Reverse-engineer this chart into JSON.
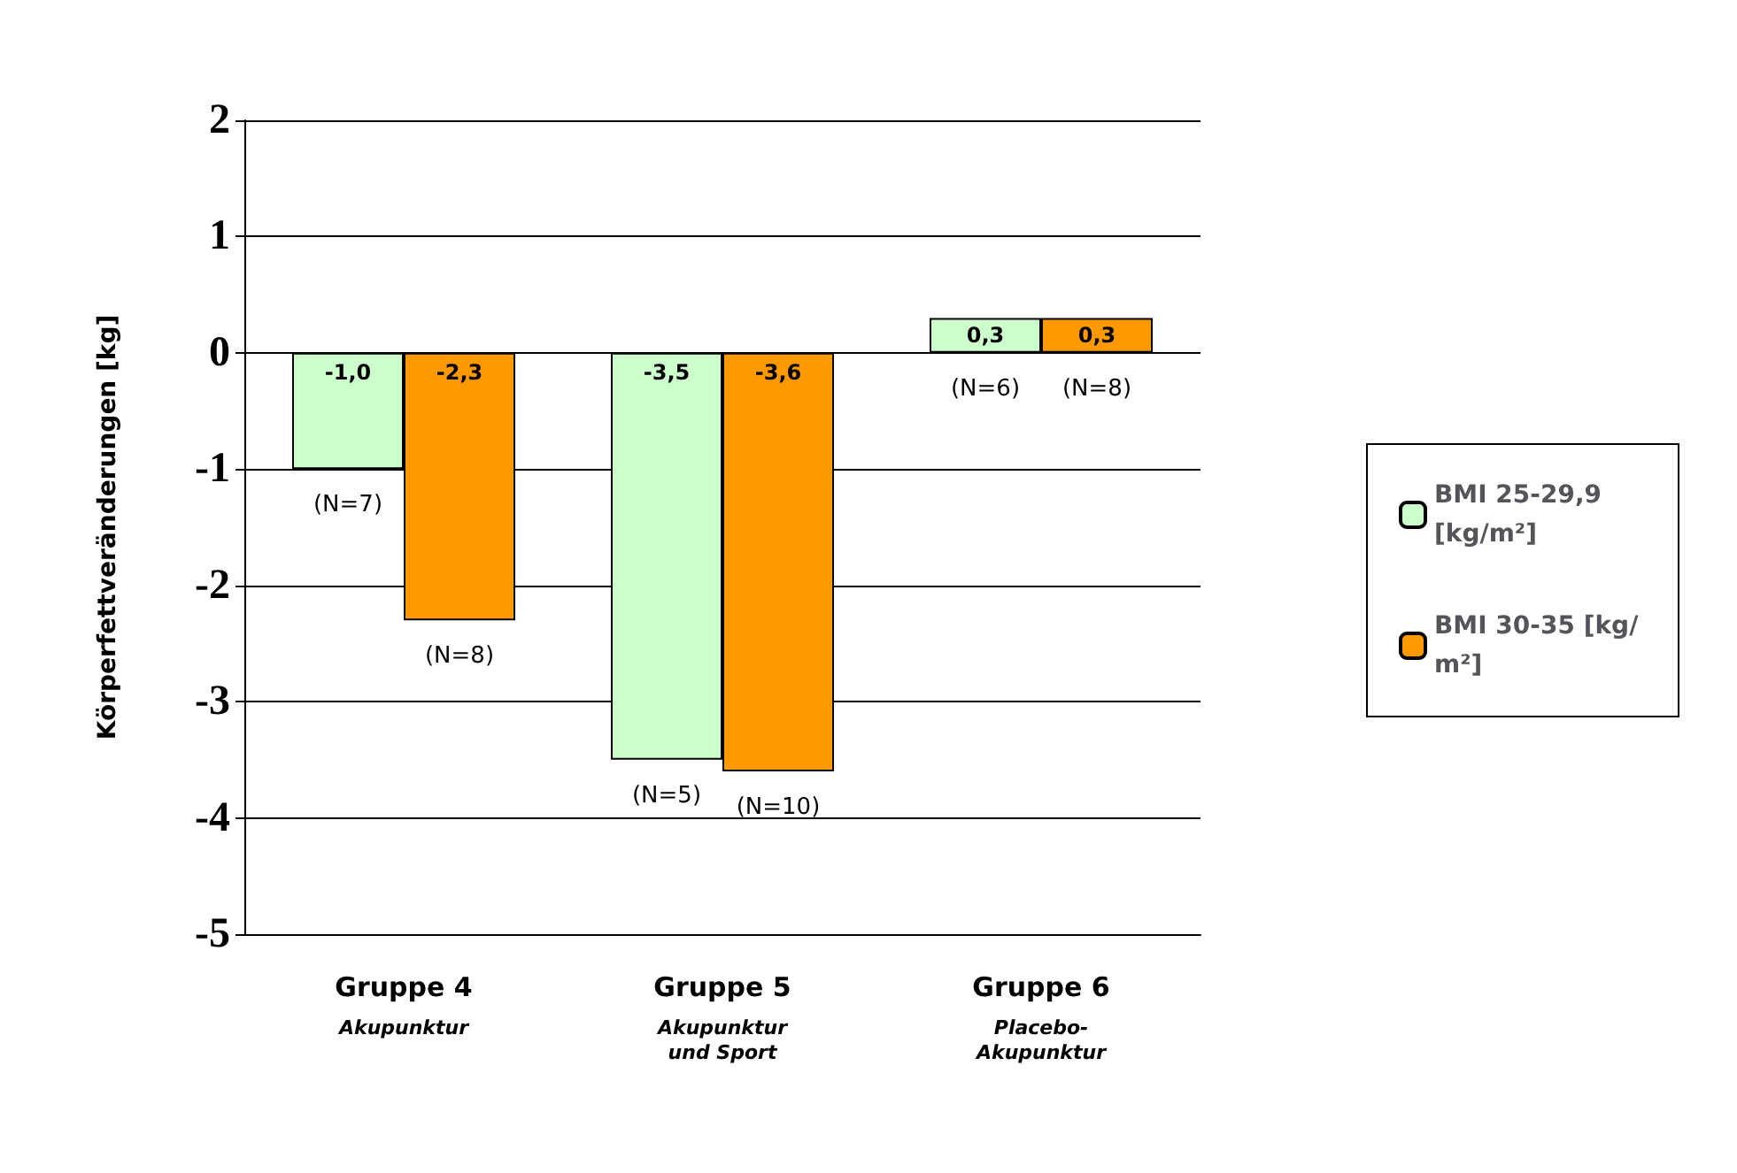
{
  "chart_data": {
    "type": "bar",
    "ylabel": "Körperfettveränderungen [kg]",
    "categories": [
      "Gruppe 4\nAkupunktur",
      "Gruppe 5\nAkupunktur\nund Sport",
      "Gruppe 6\nPlacebo-\nAkupunktur"
    ],
    "series": [
      {
        "name": "BMI 25-29,9 [kg/m²]",
        "color": "#ccffcc",
        "values": [
          -1.0,
          -3.5,
          0.3
        ],
        "value_labels": [
          "-1,0",
          "-3,5",
          "0,3"
        ]
      },
      {
        "name": "BMI 30-35 [kg/m²]",
        "color": "#ff9900",
        "values": [
          -2.3,
          -3.6,
          0.3
        ],
        "value_labels": [
          "-2,3",
          "-3,6",
          "0,3"
        ]
      }
    ],
    "ylim": [
      -5,
      2
    ],
    "yticks": [
      -5,
      -4,
      -3,
      -2,
      -1,
      0,
      1,
      2
    ],
    "grid": "y",
    "legend": "right",
    "annotations": [
      {
        "text": "(N=7)",
        "x": "Gruppe 4\nAkupunktur",
        "y": -1.0
      },
      {
        "text": "(N=8)",
        "x": "Gruppe 4\nAkupunktur",
        "y": -2.3
      },
      {
        "text": "(N=5)",
        "x": "Gruppe 5\nAkupunktur\nund Sport",
        "y": -3.5
      },
      {
        "text": "(N=10)",
        "x": "Gruppe 5\nAkupunktur\nund Sport",
        "y": -3.6
      },
      {
        "text": "(N=6)",
        "x": "Gruppe 6\nPlacebo-\nAkupunktur",
        "y": 0
      },
      {
        "text": "(N=8)",
        "x": "Gruppe 6\nPlacebo-\nAkupunktur",
        "y": 0
      }
    ]
  }
}
